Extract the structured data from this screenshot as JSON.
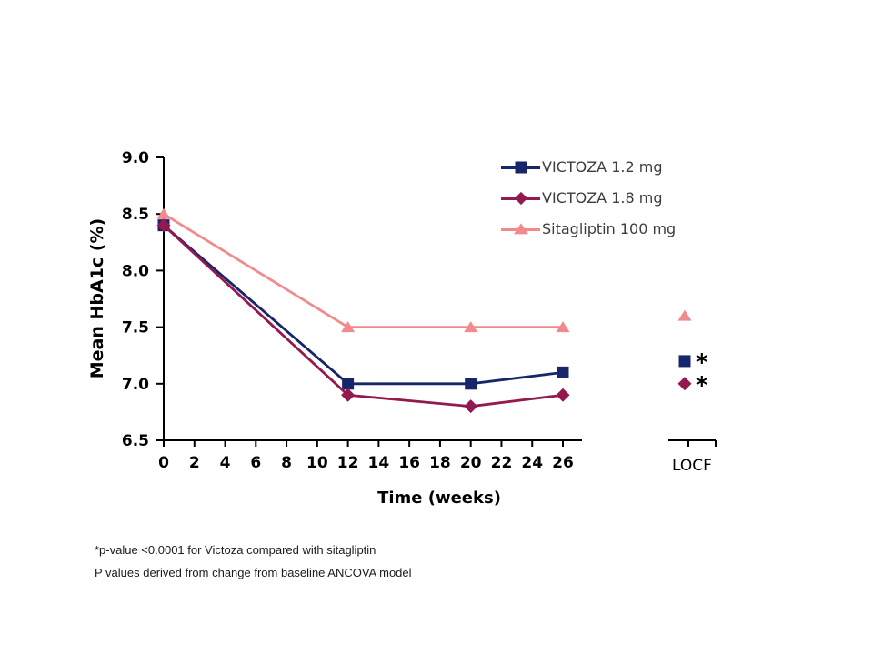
{
  "chart_data": {
    "type": "line",
    "title": "",
    "xlabel": "Time (weeks)",
    "ylabel": "Mean HbA1c (%)",
    "xlim": [
      0,
      26
    ],
    "ylim": [
      6.5,
      9.0
    ],
    "x_ticks": [
      0,
      2,
      4,
      6,
      8,
      10,
      12,
      14,
      16,
      18,
      20,
      22,
      24,
      26
    ],
    "y_ticks": [
      6.5,
      7.0,
      7.5,
      8.0,
      8.5,
      9.0
    ],
    "grid": false,
    "legend_position": "upper right",
    "x": [
      0,
      12,
      20,
      26
    ],
    "series": [
      {
        "name": "VICTOZA 1.2 mg",
        "marker": "square",
        "color": "#17256b",
        "values": [
          8.4,
          7.0,
          7.0,
          7.1
        ],
        "locf": 7.2,
        "locf_note": "*"
      },
      {
        "name": "VICTOZA 1.8 mg",
        "marker": "diamond",
        "color": "#93194f",
        "values": [
          8.4,
          6.9,
          6.8,
          6.9
        ],
        "locf": 7.0,
        "locf_note": "*"
      },
      {
        "name": "Sitagliptin 100 mg",
        "marker": "triangle",
        "color": "#f18a8d",
        "values": [
          8.5,
          7.5,
          7.5,
          7.5
        ],
        "locf": 7.6,
        "locf_note": ""
      }
    ],
    "locf_label": "LOCF",
    "axis_color": "#000000"
  },
  "footnotes": {
    "line1": "*p-value <0.0001 for Victoza compared with sitagliptin",
    "line2": "P values derived from change from baseline ANCOVA model"
  }
}
